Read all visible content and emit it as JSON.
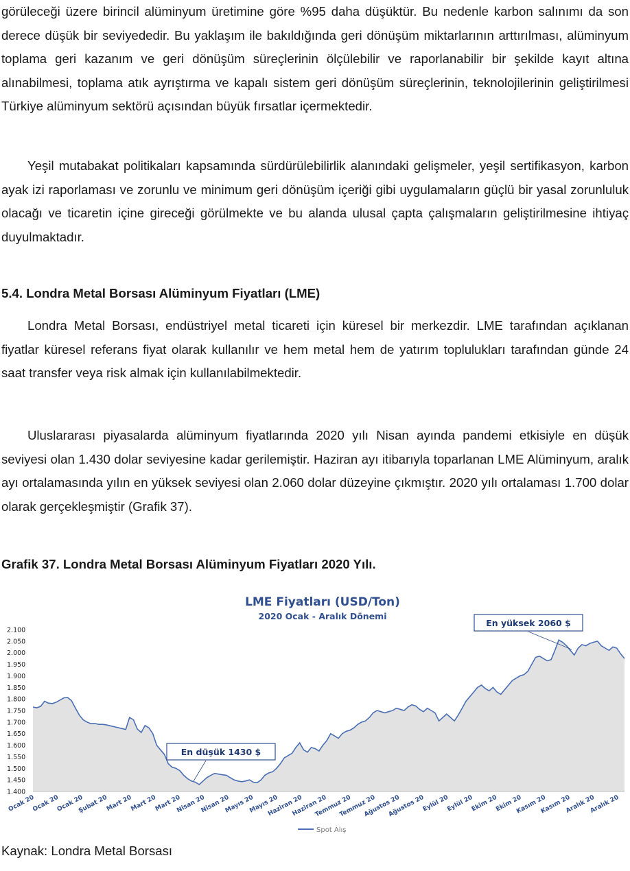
{
  "document": {
    "paragraph_1": "görüleceği üzere birincil alüminyum üretimine göre %95 daha düşüktür. Bu nedenle karbon salınımı da son derece düşük bir seviyededir. Bu yaklaşım ile bakıldığında geri dönüşüm miktarlarının arttırılması, alüminyum toplama geri kazanım ve geri dönüşüm süreçlerinin ölçülebilir ve raporlanabilir bir şekilde kayıt altına alınabilmesi, toplama atık ayrıştırma ve kapalı sistem geri dönüşüm süreçlerinin, teknolojilerinin geliştirilmesi Türkiye alüminyum sektörü açısından büyük fırsatlar içermektedir.",
    "paragraph_2": "Yeşil mutabakat politikaları kapsamında sürdürülebilirlik alanındaki gelişmeler, yeşil sertifikasyon, karbon ayak izi raporlaması ve zorunlu ve minimum geri dönüşüm içeriği gibi uygulamaların güçlü bir yasal zorunluluk olacağı ve ticaretin içine gireceği görülmekte ve bu alanda ulusal çapta çalışmaların geliştirilmesine ihtiyaç duyulmaktadır.",
    "section_heading": "5.4. Londra Metal Borsası Alüminyum Fiyatları (LME)",
    "paragraph_3": "Londra Metal Borsası, endüstriyel metal ticareti için küresel bir merkezdir. LME tarafından açıklanan fiyatlar küresel referans fiyat olarak kullanılır ve hem metal hem de yatırım toplulukları tarafından günde 24 saat transfer veya risk almak için kullanılabilmektedir.",
    "paragraph_4": "Uluslararası piyasalarda alüminyum fiyatlarında 2020 yılı Nisan ayında pandemi etkisiyle en düşük seviyesi olan 1.430 dolar seviyesine kadar gerilemiştir. Haziran ayı itibarıyla toparlanan LME Alüminyum, aralık ayı ortalamasında yılın en yüksek seviyesi olan 2.060 dolar düzeyine çıkmıştır. 2020 yılı ortalaması 1.700 dolar olarak gerçekleşmiştir (Grafik 37).",
    "figure_caption": "Grafik 37. Londra Metal Borsası Alüminyum Fiyatları 2020 Yılı.",
    "source": "Kaynak: Londra Metal Borsası"
  },
  "chart_data": {
    "type": "area",
    "title": "LME Fiyatları (USD/Ton)",
    "subtitle": "2020 Ocak - Aralık Dönemi",
    "ylim": [
      1400,
      2100
    ],
    "y_ticks": [
      "2.100",
      "2.050",
      "2.000",
      "1.950",
      "1.900",
      "1.850",
      "1.800",
      "1.750",
      "1.700",
      "1.650",
      "1.600",
      "1.550",
      "1.500",
      "1.450",
      "1.400"
    ],
    "x_tick_labels": [
      "Ocak 20",
      "Ocak 20",
      "Ocak 20",
      "Şubat 20",
      "Mart 20",
      "Mart 20",
      "Mart 20",
      "Nisan 20",
      "Nisan 20",
      "Mayıs 20",
      "Mayıs 20",
      "Haziran 20",
      "Haziran 20",
      "Temmuz 20",
      "Temmuz 20",
      "Ağustos 20",
      "Ağustos 20",
      "Eylül 20",
      "Eylül 20",
      "Ekim 20",
      "Ekim 20",
      "Kasım 20",
      "Kasım 20",
      "Aralık 20",
      "Aralık 20"
    ],
    "grid": false,
    "legend_position": "bottom",
    "series": [
      {
        "name": "Spot Alış",
        "color": "#4a6fb5",
        "fill": "#e2e2e2",
        "values": [
          1765,
          1762,
          1768,
          1790,
          1782,
          1780,
          1786,
          1795,
          1805,
          1806,
          1792,
          1760,
          1730,
          1710,
          1700,
          1693,
          1694,
          1690,
          1690,
          1688,
          1684,
          1680,
          1676,
          1672,
          1668,
          1720,
          1710,
          1670,
          1655,
          1685,
          1675,
          1650,
          1600,
          1580,
          1560,
          1520,
          1505,
          1500,
          1490,
          1470,
          1455,
          1445,
          1440,
          1430,
          1445,
          1460,
          1470,
          1478,
          1475,
          1472,
          1470,
          1460,
          1450,
          1445,
          1442,
          1445,
          1450,
          1440,
          1438,
          1450,
          1470,
          1480,
          1485,
          1500,
          1520,
          1545,
          1555,
          1565,
          1590,
          1610,
          1580,
          1570,
          1590,
          1585,
          1575,
          1600,
          1620,
          1650,
          1640,
          1630,
          1650,
          1660,
          1665,
          1675,
          1690,
          1700,
          1705,
          1720,
          1740,
          1750,
          1745,
          1740,
          1745,
          1750,
          1760,
          1755,
          1750,
          1765,
          1775,
          1770,
          1755,
          1745,
          1760,
          1750,
          1740,
          1705,
          1720,
          1735,
          1720,
          1705,
          1730,
          1760,
          1790,
          1810,
          1830,
          1850,
          1860,
          1845,
          1835,
          1850,
          1830,
          1820,
          1840,
          1860,
          1880,
          1890,
          1900,
          1905,
          1920,
          1950,
          1980,
          1985,
          1975,
          1965,
          1970,
          2010,
          2055,
          2045,
          2030,
          2010,
          1990,
          2020,
          2035,
          2030,
          2040,
          2045,
          2050,
          2030,
          2020,
          2010,
          2025,
          2020,
          1995,
          1975
        ]
      }
    ],
    "annotations": [
      {
        "text": "En düşük 1430 $",
        "target_value": 1430,
        "target_month": "Nisan 20"
      },
      {
        "text": "En yüksek 2060 $",
        "target_value": 2060,
        "target_month": "Aralık 20"
      }
    ]
  }
}
